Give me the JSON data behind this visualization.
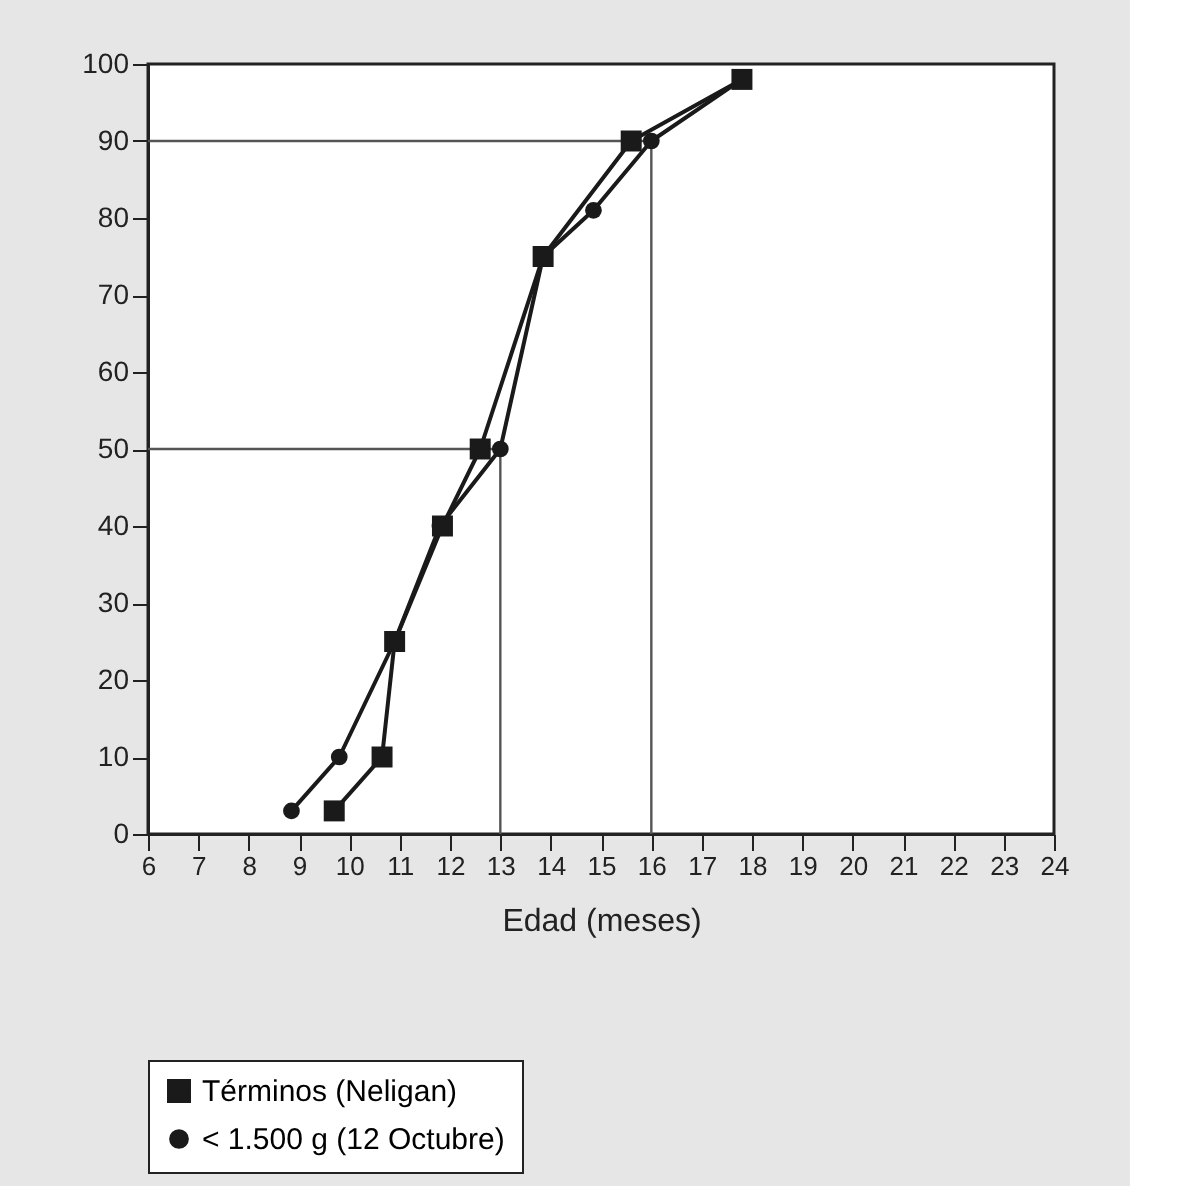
{
  "chart_data": {
    "type": "line",
    "xlabel": "Edad (meses)",
    "xlim": [
      6,
      24
    ],
    "xticks": [
      6,
      7,
      8,
      9,
      10,
      11,
      12,
      13,
      14,
      15,
      16,
      17,
      18,
      19,
      20,
      21,
      22,
      23,
      24
    ],
    "ylim": [
      0,
      100
    ],
    "yticks": [
      0,
      10,
      20,
      30,
      40,
      50,
      60,
      70,
      80,
      90,
      100
    ],
    "series": [
      {
        "name": "Términos (Neligan)",
        "color": "#1a1a1a",
        "marker": "square",
        "x": [
          9.7,
          10.65,
          10.9,
          11.85,
          12.6,
          13.85,
          15.6,
          17.8
        ],
        "values": [
          3,
          10,
          25,
          40,
          50,
          75,
          90,
          98
        ]
      },
      {
        "name": "< 1.500 g (12 Octubre)",
        "color": "#1a1a1a",
        "marker": "circle",
        "x": [
          8.85,
          9.8,
          10.9,
          11.8,
          13.0,
          13.85,
          14.85,
          16.0,
          17.8
        ],
        "values": [
          3,
          10,
          25,
          40,
          50,
          75,
          81,
          90,
          98
        ]
      }
    ],
    "ref_lines": [
      {
        "axis": "y",
        "value": 50,
        "color": "#555555"
      },
      {
        "axis": "x",
        "value": 13,
        "color": "#555555"
      },
      {
        "axis": "y",
        "value": 90,
        "color": "#555555"
      },
      {
        "axis": "x",
        "value": 16,
        "color": "#555555"
      }
    ],
    "grid": false,
    "legend": "bottom",
    "line_style": "solid"
  }
}
